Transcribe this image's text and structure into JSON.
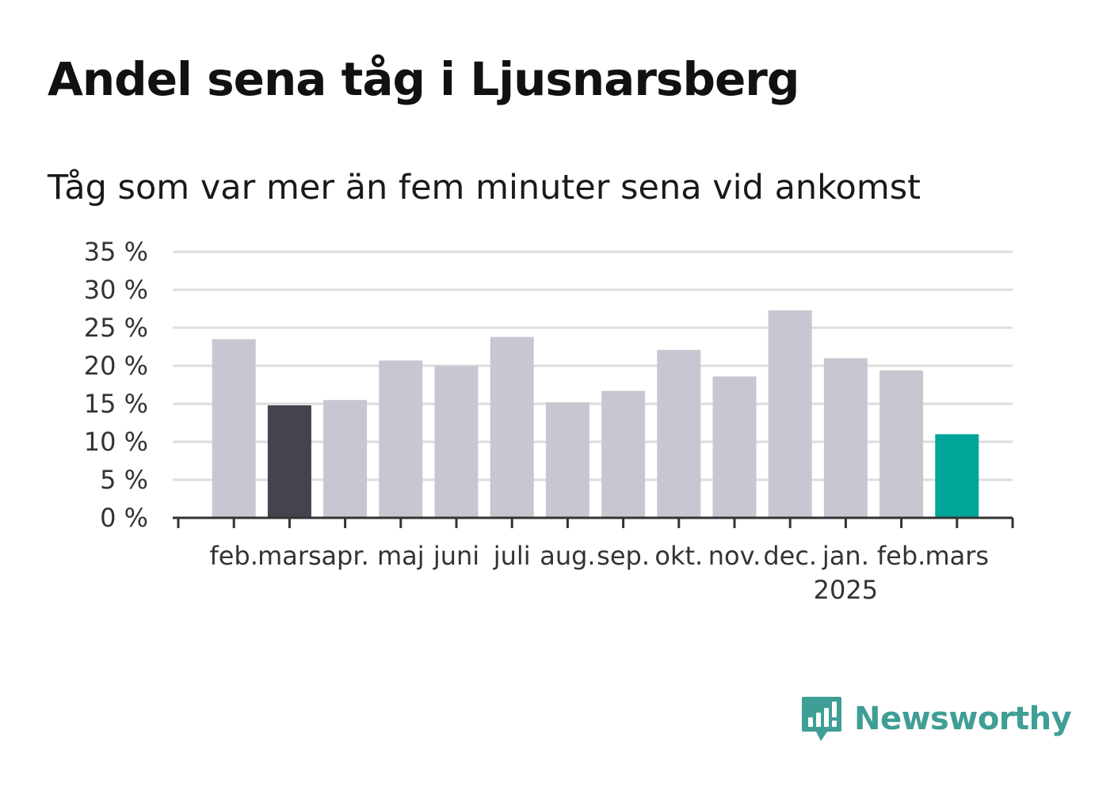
{
  "title": "Andel sena tåg i Ljusnarsberg",
  "subtitle": "Tåg som var mer än fem minuter sena vid ankomst",
  "brand": {
    "name": "Newsworthy",
    "color": "#3f9e95",
    "icon": "newsworthy-logo-icon"
  },
  "colors": {
    "bar": "#c8c7d1",
    "highlight_prev": "#44434e",
    "highlight_latest": "#00a59a",
    "grid": "#dddddd",
    "axis": "#333333"
  },
  "chart_data": {
    "type": "bar",
    "title": "Andel sena tåg i Ljusnarsberg",
    "subtitle": "Tåg som var mer än fem minuter sena vid ankomst",
    "categories": [
      "feb.",
      "mars",
      "apr.",
      "maj",
      "juni",
      "juli",
      "aug.",
      "sep.",
      "okt.",
      "nov.",
      "dec.",
      "jan.",
      "feb.",
      "mars"
    ],
    "year_label": {
      "category_index": 11,
      "text": "2025"
    },
    "values": [
      23.5,
      14.8,
      15.5,
      20.7,
      20.0,
      23.8,
      15.2,
      16.7,
      22.1,
      18.6,
      27.3,
      21.0,
      19.4,
      11.0
    ],
    "highlight": {
      "1": "highlight_prev",
      "13": "highlight_latest"
    },
    "ylim": [
      0,
      35
    ],
    "yticks": [
      0,
      5,
      10,
      15,
      20,
      25,
      30,
      35
    ],
    "ytick_labels": [
      "0 %",
      "5 %",
      "10 %",
      "15 %",
      "20 %",
      "25 %",
      "30 %",
      "35 %"
    ],
    "xlabel": "",
    "ylabel": "",
    "grid": true,
    "legend": "none"
  }
}
